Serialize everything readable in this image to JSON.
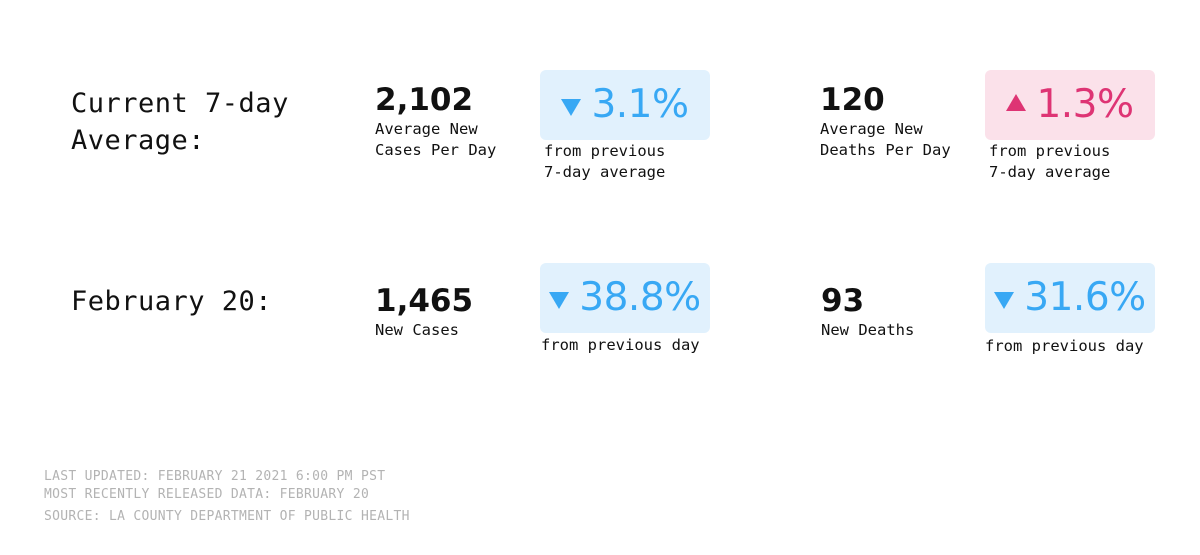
{
  "row1": {
    "label": "Current 7-day\nAverage:",
    "cases": {
      "value": "2,102",
      "desc": "Average New\nCases Per Day",
      "change": "3.1%",
      "direction": "down",
      "note": "from previous\n7-day average"
    },
    "deaths": {
      "value": "120",
      "desc": "Average New\nDeaths Per Day",
      "change": "1.3%",
      "direction": "up",
      "note": "from previous\n7-day average"
    }
  },
  "row2": {
    "label": "February 20:",
    "cases": {
      "value": "1,465",
      "desc": "New Cases",
      "change": "38.8%",
      "direction": "down",
      "note": "from previous day"
    },
    "deaths": {
      "value": "93",
      "desc": "New Deaths",
      "change": "31.6%",
      "direction": "down",
      "note": "from previous day"
    }
  },
  "footer": {
    "updated": "LAST UPDATED: FEBRUARY 21 2021 6:00 PM PST",
    "released": "MOST RECENTLY RELEASED DATA: FEBRUARY 20",
    "source": "SOURCE: LA COUNTY DEPARTMENT OF PUBLIC HEALTH"
  },
  "colors": {
    "decrease_text": "#38a8f4",
    "decrease_bg": "#e1f1fd",
    "increase_text": "#de3474",
    "increase_bg": "#fbe1ea",
    "footer_text": "#b3b3b3"
  },
  "icons": {
    "decrease": "triangle-down-icon",
    "increase": "triangle-up-icon"
  }
}
